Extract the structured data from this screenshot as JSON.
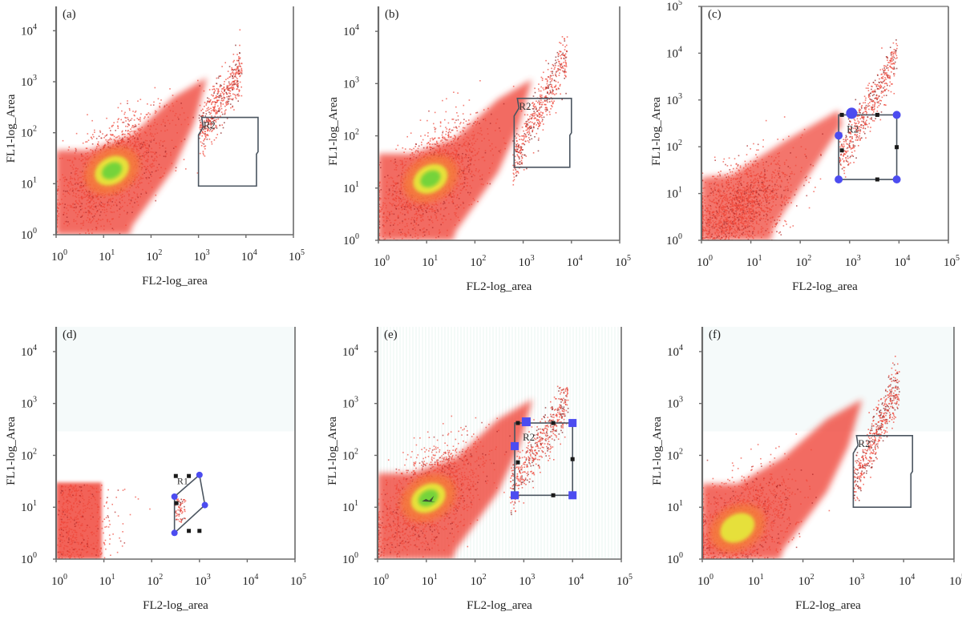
{
  "figure": {
    "panel_count": 6,
    "colors": {
      "background": "#ffffff",
      "axis": "#6b6b6b",
      "density_low": "#f0473a",
      "density_mid": "#f57a3c",
      "density_high": "#e6e63a",
      "density_peak": "#6fd33a",
      "gate_line": "#4b5560",
      "gate_handle": "#4c4cf0",
      "gate_handle_small": "#1a1a1a"
    }
  },
  "chart_data": [
    {
      "id": "a",
      "type": "scatter",
      "panel_label": "(a)",
      "xlabel": "FL2-log_area",
      "ylabel": "FL1-log_Area",
      "x_ticks": [
        "10^0",
        "10^1",
        "10^2",
        "10^3",
        "10^4",
        "10^5"
      ],
      "y_ticks": [
        "10^0",
        "10^1",
        "10^2",
        "10^3",
        "10^4"
      ],
      "x_scale": "log",
      "y_scale": "log",
      "xlim": [
        1,
        100000
      ],
      "ylim": [
        1,
        30000
      ],
      "main_population_center": {
        "x": 15,
        "y": 18,
        "peak_color": "green"
      },
      "secondary_population": {
        "x_range": [
          1000,
          8000
        ],
        "y_range": [
          100,
          2000
        ]
      },
      "gate": {
        "label": "R2",
        "shape": "polygon",
        "x_range": [
          1000,
          18000
        ],
        "y_range": [
          9,
          200
        ],
        "handles": false
      }
    },
    {
      "id": "b",
      "type": "scatter",
      "panel_label": "(b)",
      "xlabel": "FL2-log_area",
      "ylabel": "FL1-log_Area",
      "x_ticks": [
        "10^0",
        "10^1",
        "10^2",
        "10^3",
        "10^4",
        "10^5"
      ],
      "y_ticks": [
        "10^0",
        "10^1",
        "10^2",
        "10^3",
        "10^4"
      ],
      "x_scale": "log",
      "y_scale": "log",
      "xlim": [
        1,
        100000
      ],
      "ylim": [
        1,
        30000
      ],
      "main_population_center": {
        "x": 12,
        "y": 15,
        "peak_color": "green"
      },
      "secondary_population": {
        "x_range": [
          600,
          8000
        ],
        "y_range": [
          30,
          4000
        ]
      },
      "gate": {
        "label": "R2",
        "shape": "polygon",
        "x_range": [
          650,
          10000
        ],
        "y_range": [
          25,
          520
        ],
        "handles": false
      }
    },
    {
      "id": "c",
      "type": "scatter",
      "panel_label": "(c)",
      "xlabel": "FL2-log_area",
      "ylabel": "FL1-log_Area",
      "x_ticks": [
        "10^0",
        "10^1",
        "10^2",
        "10^3",
        "10^4",
        "10^5"
      ],
      "y_ticks": [
        "10^0",
        "10^1",
        "10^2",
        "10^3",
        "10^4",
        "10^5"
      ],
      "x_scale": "log",
      "y_scale": "log",
      "xlim": [
        1,
        100000
      ],
      "ylim": [
        1,
        100000
      ],
      "main_population_center": {
        "x": 5,
        "y": 5,
        "peak_color": "red"
      },
      "secondary_population": {
        "x_range": [
          600,
          9000
        ],
        "y_range": [
          50,
          9000
        ]
      },
      "gate": {
        "label": "R2",
        "shape": "rectangle",
        "x_range": [
          600,
          9000
        ],
        "y_range": [
          20,
          480
        ],
        "handles": true
      }
    },
    {
      "id": "d",
      "type": "scatter",
      "panel_label": "(d)",
      "xlabel": "FL2-log_area",
      "ylabel": "FL1-log_Area",
      "x_ticks": [
        "10^0",
        "10^1",
        "10^2",
        "10^3",
        "10^4",
        "10^5"
      ],
      "y_ticks": [
        "10^0",
        "10^1",
        "10^2",
        "10^3",
        "10^4"
      ],
      "x_scale": "log",
      "y_scale": "log",
      "xlim": [
        1,
        100000
      ],
      "ylim": [
        1,
        30000
      ],
      "main_population_center": {
        "x": 3,
        "y": 5,
        "peak_color": "red"
      },
      "secondary_population": {
        "x_range": [
          300,
          500
        ],
        "y_range": [
          5,
          15
        ]
      },
      "gate": {
        "label": "R1",
        "shape": "polygon",
        "x_range": [
          300,
          1300
        ],
        "y_range": [
          3,
          45
        ],
        "handles": true
      }
    },
    {
      "id": "e",
      "type": "scatter",
      "panel_label": "(e)",
      "xlabel": "FL2-log_area",
      "ylabel": "FL1-log_Area",
      "x_ticks": [
        "10^0",
        "10^1",
        "10^2",
        "10^3",
        "10^4",
        "10^5"
      ],
      "y_ticks": [
        "10^0",
        "10^1",
        "10^2",
        "10^3",
        "10^4"
      ],
      "x_scale": "log",
      "y_scale": "log",
      "xlim": [
        1,
        100000
      ],
      "ylim": [
        1,
        30000
      ],
      "main_population_center": {
        "x": 11,
        "y": 15,
        "peak_color": "green"
      },
      "secondary_population": {
        "x_range": [
          500,
          8000
        ],
        "y_range": [
          20,
          1200
        ]
      },
      "gate": {
        "label": "R2",
        "shape": "rectangle",
        "x_range": [
          650,
          10000
        ],
        "y_range": [
          17,
          420
        ],
        "handles": true
      }
    },
    {
      "id": "f",
      "type": "scatter",
      "panel_label": "(f)",
      "xlabel": "FL2-log_area",
      "ylabel": "FL1-log_Area",
      "x_ticks": [
        "10^0",
        "10^1",
        "10^2",
        "10^3",
        "10^4",
        "10^5"
      ],
      "y_ticks": [
        "10^0",
        "10^1",
        "10^2",
        "10^3",
        "10^4"
      ],
      "x_scale": "log",
      "y_scale": "log",
      "xlim": [
        1,
        100000
      ],
      "ylim": [
        1,
        30000
      ],
      "main_population_center": {
        "x": 5,
        "y": 4,
        "peak_color": "yellow"
      },
      "secondary_population": {
        "x_range": [
          1000,
          8000
        ],
        "y_range": [
          30,
          2500
        ]
      },
      "gate": {
        "label": "R2",
        "shape": "polygon",
        "x_range": [
          1000,
          15000
        ],
        "y_range": [
          10,
          240
        ],
        "handles": false
      }
    }
  ]
}
